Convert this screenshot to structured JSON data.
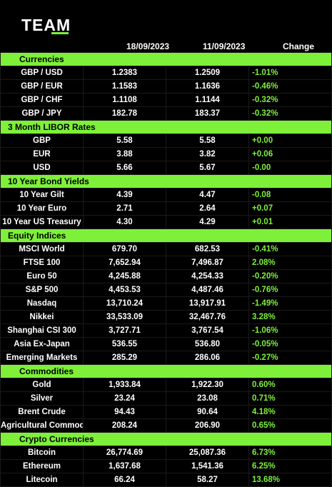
{
  "brand": {
    "logo_text": "TEAM",
    "accent": "#7ef03a"
  },
  "columns": {
    "date1": "18/09/2023",
    "date2": "11/09/2023",
    "change": "Change"
  },
  "sections": [
    {
      "title": "Currencies",
      "indent": true,
      "rows": [
        {
          "label": "GBP / USD",
          "v1": "1.2383",
          "v2": "1.2509",
          "chg": "-1.01%"
        },
        {
          "label": "GBP / EUR",
          "v1": "1.1583",
          "v2": "1.1636",
          "chg": "-0.46%"
        },
        {
          "label": "GBP / CHF",
          "v1": "1.1108",
          "v2": "1.1144",
          "chg": "-0.32%"
        },
        {
          "label": "GBP / JPY",
          "v1": "182.78",
          "v2": "183.37",
          "chg": "-0.32%"
        }
      ]
    },
    {
      "title": "3 Month LIBOR Rates",
      "indent": false,
      "rows": [
        {
          "label": "GBP",
          "v1": "5.58",
          "v2": "5.58",
          "chg": "+0.00"
        },
        {
          "label": "EUR",
          "v1": "3.88",
          "v2": "3.82",
          "chg": "+0.06"
        },
        {
          "label": "USD",
          "v1": "5.66",
          "v2": "5.67",
          "chg": "-0.00"
        }
      ]
    },
    {
      "title": "10 Year Bond Yields",
      "indent": false,
      "rows": [
        {
          "label": "10 Year Gilt",
          "v1": "4.39",
          "v2": "4.47",
          "chg": "-0.08"
        },
        {
          "label": "10 Year Euro",
          "v1": "2.71",
          "v2": "2.64",
          "chg": "+0.07"
        },
        {
          "label": "10 Year US Treasury",
          "v1": "4.30",
          "v2": "4.29",
          "chg": "+0.01"
        }
      ]
    },
    {
      "title": "Equity Indices",
      "indent": false,
      "rows": [
        {
          "label": "MSCI World",
          "v1": "679.70",
          "v2": "682.53",
          "chg": "-0.41%"
        },
        {
          "label": "FTSE 100",
          "v1": "7,652.94",
          "v2": "7,496.87",
          "chg": "2.08%"
        },
        {
          "label": "Euro 50",
          "v1": "4,245.88",
          "v2": "4,254.33",
          "chg": "-0.20%"
        },
        {
          "label": "S&P 500",
          "v1": "4,453.53",
          "v2": "4,487.46",
          "chg": "-0.76%"
        },
        {
          "label": "Nasdaq",
          "v1": "13,710.24",
          "v2": "13,917.91",
          "chg": "-1.49%"
        },
        {
          "label": "Nikkei",
          "v1": "33,533.09",
          "v2": "32,467.76",
          "chg": "3.28%"
        },
        {
          "label": "Shanghai CSI 300",
          "v1": "3,727.71",
          "v2": "3,767.54",
          "chg": "-1.06%"
        },
        {
          "label": "Asia Ex-Japan",
          "v1": "536.55",
          "v2": "536.80",
          "chg": "-0.05%"
        },
        {
          "label": "Emerging Markets",
          "v1": "285.29",
          "v2": "286.06",
          "chg": "-0.27%"
        }
      ]
    },
    {
      "title": "Commodities",
      "indent": true,
      "rows": [
        {
          "label": "Gold",
          "v1": "1,933.84",
          "v2": "1,922.30",
          "chg": "0.60%"
        },
        {
          "label": "Silver",
          "v1": "23.24",
          "v2": "23.08",
          "chg": "0.71%"
        },
        {
          "label": "Brent Crude",
          "v1": "94.43",
          "v2": "90.64",
          "chg": "4.18%"
        },
        {
          "label": "Agricultural Commods.",
          "v1": "208.24",
          "v2": "206.90",
          "chg": "0.65%"
        }
      ]
    },
    {
      "title": "Crypto Currencies",
      "indent": true,
      "rows": [
        {
          "label": "Bitcoin",
          "v1": "26,774.69",
          "v2": "25,087.36",
          "chg": "6.73%"
        },
        {
          "label": "Ethereum",
          "v1": "1,637.68",
          "v2": "1,541.36",
          "chg": "6.25%"
        },
        {
          "label": "Litecoin",
          "v1": "66.24",
          "v2": "58.27",
          "chg": "13.68%"
        }
      ]
    }
  ]
}
